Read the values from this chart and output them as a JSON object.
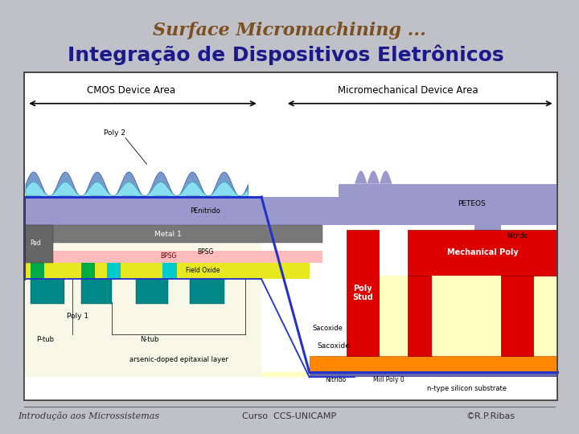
{
  "background_color": "#c0c0c8",
  "title1": "Surface Micromachining ...",
  "title1_color": "#7B4F1E",
  "title1_fontsize": 16,
  "title2": "Integração de Dispositivos Eletrônicos",
  "title2_color": "#1a1a8c",
  "title2_fontsize": 18,
  "footer_left": "Introdução aos Microssistemas",
  "footer_center": "Curso  CCS-UNICAMP",
  "footer_right": "©R.P.Ribas",
  "footer_fontsize": 8,
  "cmos_label": "CMOS Device Area",
  "mems_label": "Micromechanical Device Area",
  "poly2_label": "Poly 2",
  "metal1_label": "Metal 1",
  "penitrido_label": "PEnitrido",
  "peteos_label": "PETEOS",
  "nitrido_label": "Nitrido",
  "fieldoxide_label": "Field Oxide",
  "bpsg_label": "BPSG",
  "sacoxide_label": "Sacoxide",
  "poly1_label": "Poly 1",
  "pad_label": "Pad",
  "ptub_label": "P-tub",
  "ntub_label": "N-tub",
  "polystud_label": "Poly\nStud",
  "mechanicalpoly_label": "Mechanical Poly",
  "arsenic_label": "arsenic-doped epitaxial layer",
  "nitridobottom_label": "Nitrido",
  "millpoly0_label": "Mill Poly 0",
  "ntype_label": "n-type silicon substrate"
}
